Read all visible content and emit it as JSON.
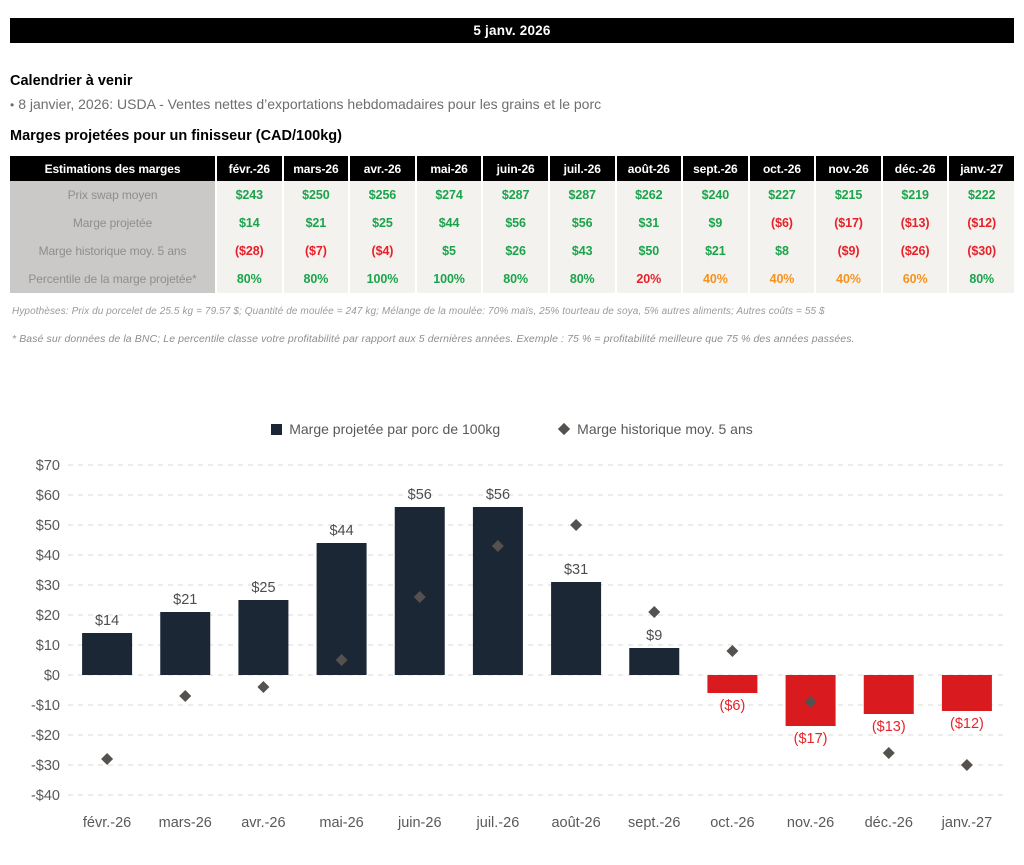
{
  "header": {
    "date": "5 janv. 2026"
  },
  "calendar": {
    "title": "Calendrier à venir",
    "bullet_glyph": "•",
    "items": [
      "8 janvier, 2026: USDA - Ventes nettes d’exportations hebdomadaires pour les grains et le porc"
    ]
  },
  "margins_section": {
    "title": "Marges projetées pour un finisseur (CAD/100kg)"
  },
  "table": {
    "header": [
      "Estimations des marges",
      "févr.-26",
      "mars-26",
      "avr.-26",
      "mai-26",
      "juin-26",
      "juil.-26",
      "août-26",
      "sept.-26",
      "oct.-26",
      "nov.-26",
      "déc.-26",
      "janv.-27"
    ],
    "rows": [
      {
        "label": "Prix swap moyen",
        "cells": [
          {
            "text": "$243",
            "color": "green"
          },
          {
            "text": "$250",
            "color": "green"
          },
          {
            "text": "$256",
            "color": "green"
          },
          {
            "text": "$274",
            "color": "green"
          },
          {
            "text": "$287",
            "color": "green"
          },
          {
            "text": "$287",
            "color": "green"
          },
          {
            "text": "$262",
            "color": "green"
          },
          {
            "text": "$240",
            "color": "green"
          },
          {
            "text": "$227",
            "color": "green"
          },
          {
            "text": "$215",
            "color": "green"
          },
          {
            "text": "$219",
            "color": "green"
          },
          {
            "text": "$222",
            "color": "green"
          }
        ]
      },
      {
        "label": "Marge projetée",
        "cells": [
          {
            "text": "$14",
            "color": "green"
          },
          {
            "text": "$21",
            "color": "green"
          },
          {
            "text": "$25",
            "color": "green"
          },
          {
            "text": "$44",
            "color": "green"
          },
          {
            "text": "$56",
            "color": "green"
          },
          {
            "text": "$56",
            "color": "green"
          },
          {
            "text": "$31",
            "color": "green"
          },
          {
            "text": "$9",
            "color": "green"
          },
          {
            "text": "($6)",
            "color": "red"
          },
          {
            "text": "($17)",
            "color": "red"
          },
          {
            "text": "($13)",
            "color": "red"
          },
          {
            "text": "($12)",
            "color": "red"
          }
        ]
      },
      {
        "label": "Marge historique moy. 5 ans",
        "cells": [
          {
            "text": "($28)",
            "color": "red"
          },
          {
            "text": "($7)",
            "color": "red"
          },
          {
            "text": "($4)",
            "color": "red"
          },
          {
            "text": "$5",
            "color": "green"
          },
          {
            "text": "$26",
            "color": "green"
          },
          {
            "text": "$43",
            "color": "green"
          },
          {
            "text": "$50",
            "color": "green"
          },
          {
            "text": "$21",
            "color": "green"
          },
          {
            "text": "$8",
            "color": "green"
          },
          {
            "text": "($9)",
            "color": "red"
          },
          {
            "text": "($26)",
            "color": "red"
          },
          {
            "text": "($30)",
            "color": "red"
          }
        ]
      },
      {
        "label": "Percentile de la marge projetée*",
        "cells": [
          {
            "text": "80%",
            "color": "green"
          },
          {
            "text": "80%",
            "color": "green"
          },
          {
            "text": "100%",
            "color": "green"
          },
          {
            "text": "100%",
            "color": "green"
          },
          {
            "text": "80%",
            "color": "green"
          },
          {
            "text": "80%",
            "color": "green"
          },
          {
            "text": "20%",
            "color": "red"
          },
          {
            "text": "40%",
            "color": "orange"
          },
          {
            "text": "40%",
            "color": "orange"
          },
          {
            "text": "40%",
            "color": "orange"
          },
          {
            "text": "60%",
            "color": "orange"
          },
          {
            "text": "80%",
            "color": "green"
          }
        ]
      }
    ]
  },
  "notes": {
    "hypotheses": "Hypothèses: Prix du porcelet de 25.5 kg = 79.57 $; Quantité de moulée = 247 kg; Mélange de la moulée: 70% maïs, 25% tourteau de soya, 5% autres aliments; Autres coûts = 55 $",
    "footnote": "* Basé sur données de la BNC; Le percentile classe votre profitabilité par rapport aux 5 dernières années. Exemple : 75 % = profitabilité meilleure que 75 % des années passées."
  },
  "chart_data": {
    "type": "bar",
    "categories": [
      "févr.-26",
      "mars-26",
      "avr.-26",
      "mai-26",
      "juin-26",
      "juil.-26",
      "août-26",
      "sept.-26",
      "oct.-26",
      "nov.-26",
      "déc.-26",
      "janv.-27"
    ],
    "series": [
      {
        "name": "Marge projetée par porc de 100kg",
        "type": "bar",
        "values": [
          14,
          21,
          25,
          44,
          56,
          56,
          31,
          9,
          -6,
          -17,
          -13,
          -12
        ],
        "labels": [
          "$14",
          "$21",
          "$25",
          "$44",
          "$56",
          "$56",
          "$31",
          "$9",
          "($6)",
          "($17)",
          "($13)",
          "($12)"
        ]
      },
      {
        "name": "Marge historique moy. 5 ans",
        "type": "scatter",
        "marker": "diamond",
        "values": [
          -28,
          -7,
          -4,
          5,
          26,
          43,
          50,
          21,
          8,
          -9,
          -26,
          -30
        ]
      }
    ],
    "ylim": [
      -40,
      70
    ],
    "ytick_step": 10,
    "yticks": [
      "$70",
      "$60",
      "$50",
      "$40",
      "$30",
      "$20",
      "$10",
      "$0",
      "-$10",
      "-$20",
      "-$30",
      "-$40"
    ],
    "grid": "horizontal-dashed",
    "legend_position": "top-center",
    "xlabel": "",
    "ylabel": "",
    "colors": {
      "bar_positive": "#1b2735",
      "bar_negative": "#d91b20",
      "diamond": "#55514e",
      "label_positive": "#4d4d4d",
      "label_negative": "#e8232b",
      "axis_text": "#58595b",
      "gridline": "#d9d9d9"
    }
  }
}
